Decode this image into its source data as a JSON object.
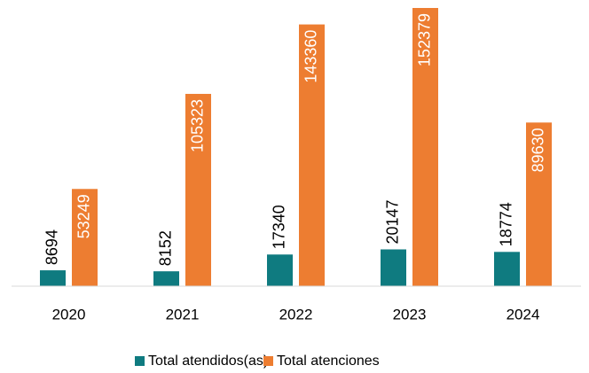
{
  "chart_data": {
    "type": "bar",
    "categories": [
      "2020",
      "2021",
      "2022",
      "2023",
      "2024"
    ],
    "series": [
      {
        "name": "Total atendidos(as)",
        "color": "#0f7b80",
        "values": [
          8694,
          8152,
          17340,
          20147,
          18774
        ]
      },
      {
        "name": "Total atenciones",
        "color": "#ed7d31",
        "values": [
          53249,
          105323,
          143360,
          152379,
          89630
        ]
      }
    ],
    "legend": "bottom"
  }
}
